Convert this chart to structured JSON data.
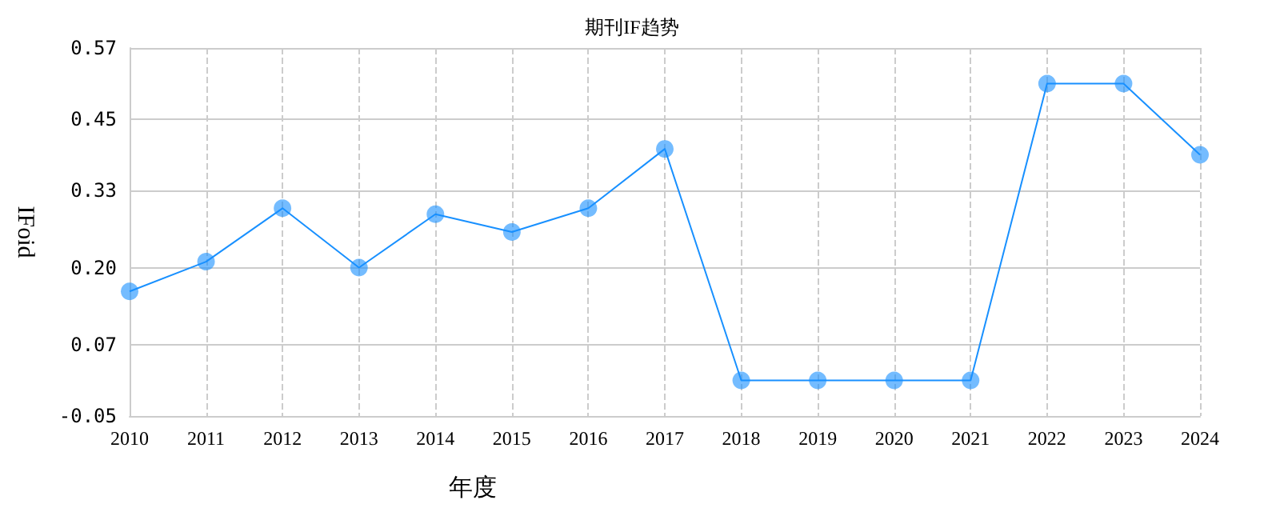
{
  "chart_data": {
    "type": "line",
    "title": "期刊IF趋势",
    "xlabel": "年度",
    "ylabel": "IFoid",
    "categories": [
      "2010",
      "2011",
      "2012",
      "2013",
      "2014",
      "2015",
      "2016",
      "2017",
      "2018",
      "2019",
      "2020",
      "2021",
      "2022",
      "2023",
      "2024"
    ],
    "series": [
      {
        "color": "#1890ff",
        "values": [
          0.16,
          0.21,
          0.3,
          0.2,
          0.29,
          0.26,
          0.3,
          0.4,
          0.01,
          0.01,
          0.01,
          0.01,
          0.51,
          0.51,
          0.39
        ]
      }
    ],
    "ylim": [
      -0.05,
      0.57
    ],
    "yticks": [
      {
        "value": -0.05,
        "label": "-0.05"
      },
      {
        "value": 0.07,
        "label": "0.07"
      },
      {
        "value": 0.2,
        "label": "0.20"
      },
      {
        "value": 0.33,
        "label": "0.33"
      },
      {
        "value": 0.45,
        "label": "0.45"
      },
      {
        "value": 0.57,
        "label": "0.57"
      }
    ],
    "grid": true,
    "marker": "circle",
    "line_style": "solid"
  }
}
